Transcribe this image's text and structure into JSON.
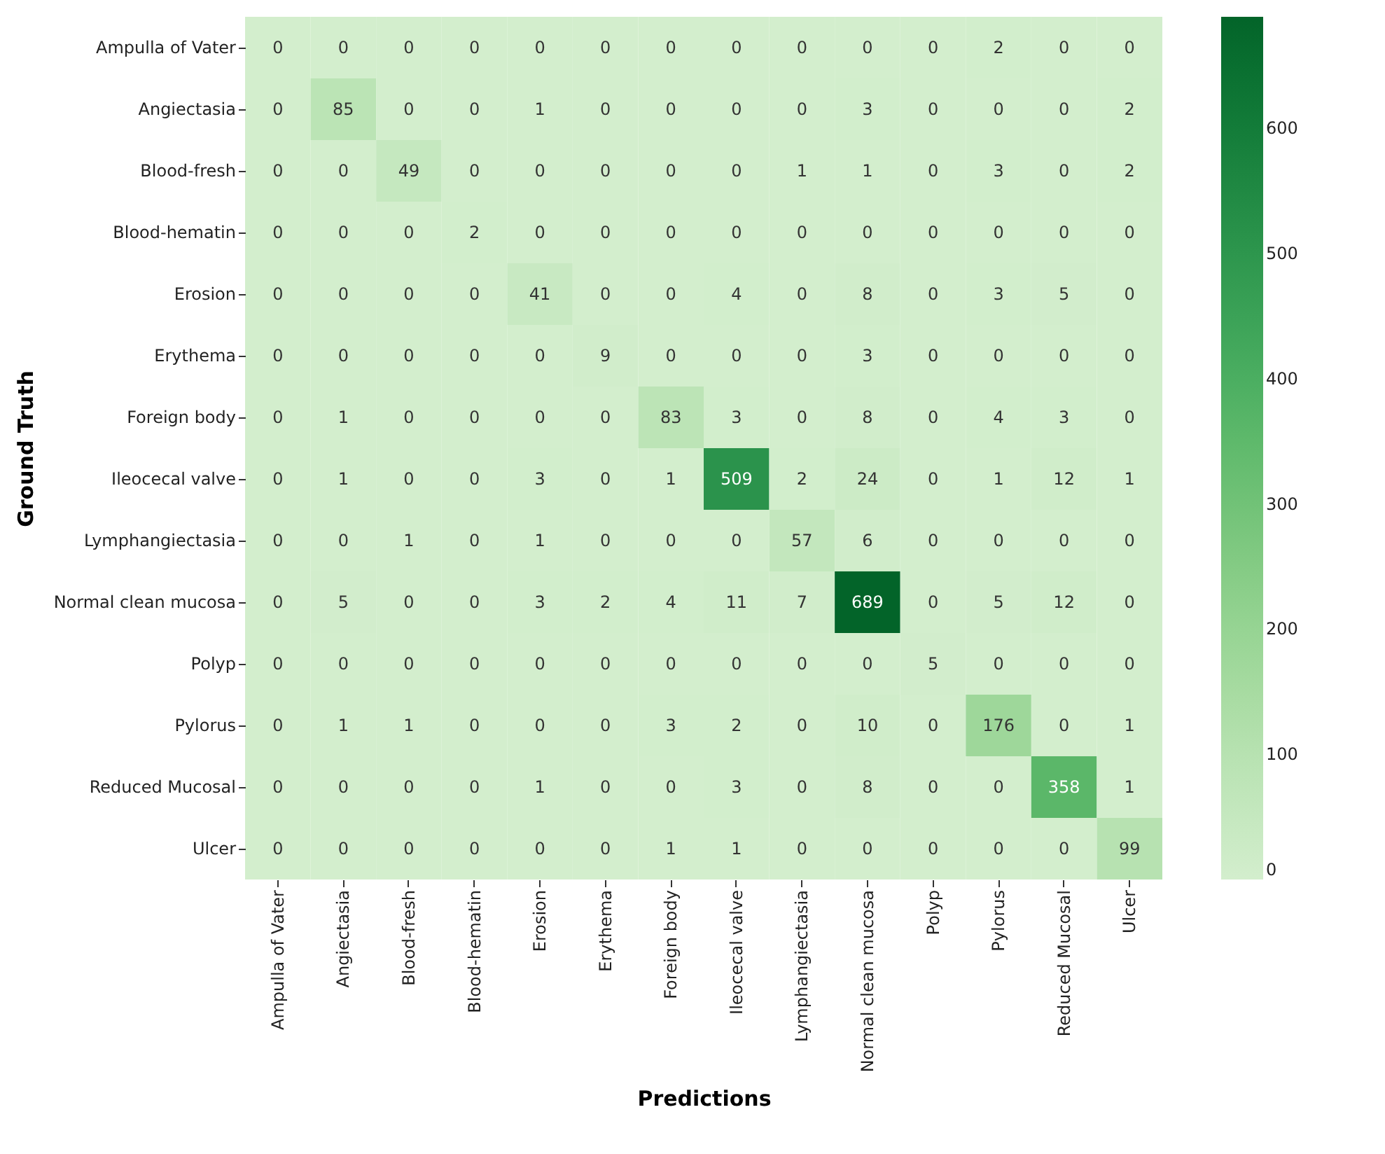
{
  "chart_data": {
    "type": "heatmap",
    "xlabel": "Predictions",
    "ylabel": "Ground Truth",
    "categories": [
      "Ampulla of Vater",
      "Angiectasia",
      "Blood-fresh",
      "Blood-hematin",
      "Erosion",
      "Erythema",
      "Foreign body",
      "Ileocecal valve",
      "Lymphangiectasia",
      "Normal clean mucosa",
      "Polyp",
      "Pylorus",
      "Reduced Mucosal",
      "Ulcer"
    ],
    "y_categories": [
      "Ampulla of Vater",
      "Angiectasia",
      "Blood-fresh",
      "Blood-hematin",
      "Erosion",
      "Erythema",
      "Foreign body",
      "Ileocecal valve",
      "Lymphangiectasia",
      "Normal clean mucosa",
      "Polyp",
      "Pylorus",
      "Reduced Mucosal",
      "Ulcer"
    ],
    "cells": [
      [
        0,
        0,
        0,
        0,
        0,
        0,
        0,
        0,
        0,
        0,
        0,
        2,
        0,
        0
      ],
      [
        0,
        85,
        0,
        0,
        1,
        0,
        0,
        0,
        0,
        3,
        0,
        0,
        0,
        2
      ],
      [
        0,
        0,
        49,
        0,
        0,
        0,
        0,
        0,
        1,
        1,
        0,
        3,
        0,
        2
      ],
      [
        0,
        0,
        0,
        2,
        0,
        0,
        0,
        0,
        0,
        0,
        0,
        0,
        0,
        0
      ],
      [
        0,
        0,
        0,
        0,
        41,
        0,
        0,
        4,
        0,
        8,
        0,
        3,
        5,
        0
      ],
      [
        0,
        0,
        0,
        0,
        0,
        9,
        0,
        0,
        0,
        3,
        0,
        0,
        0,
        0
      ],
      [
        0,
        1,
        0,
        0,
        0,
        0,
        83,
        3,
        0,
        8,
        0,
        4,
        3,
        0
      ],
      [
        0,
        1,
        0,
        0,
        3,
        0,
        1,
        509,
        2,
        24,
        0,
        1,
        12,
        1
      ],
      [
        0,
        0,
        1,
        0,
        1,
        0,
        0,
        0,
        57,
        6,
        0,
        0,
        0,
        0
      ],
      [
        0,
        5,
        0,
        0,
        3,
        2,
        4,
        11,
        7,
        689,
        0,
        5,
        12,
        0
      ],
      [
        0,
        0,
        0,
        0,
        0,
        0,
        0,
        0,
        0,
        0,
        5,
        0,
        0,
        0
      ],
      [
        0,
        1,
        1,
        0,
        0,
        0,
        3,
        2,
        0,
        10,
        0,
        176,
        0,
        1
      ],
      [
        0,
        0,
        0,
        0,
        1,
        0,
        0,
        3,
        0,
        8,
        0,
        0,
        358,
        1
      ],
      [
        0,
        0,
        0,
        0,
        0,
        0,
        1,
        1,
        0,
        0,
        0,
        0,
        0,
        99
      ]
    ],
    "clim": [
      0,
      689
    ],
    "cticks": [
      0,
      100,
      200,
      300,
      400,
      500,
      600
    ],
    "data_labels": true
  }
}
